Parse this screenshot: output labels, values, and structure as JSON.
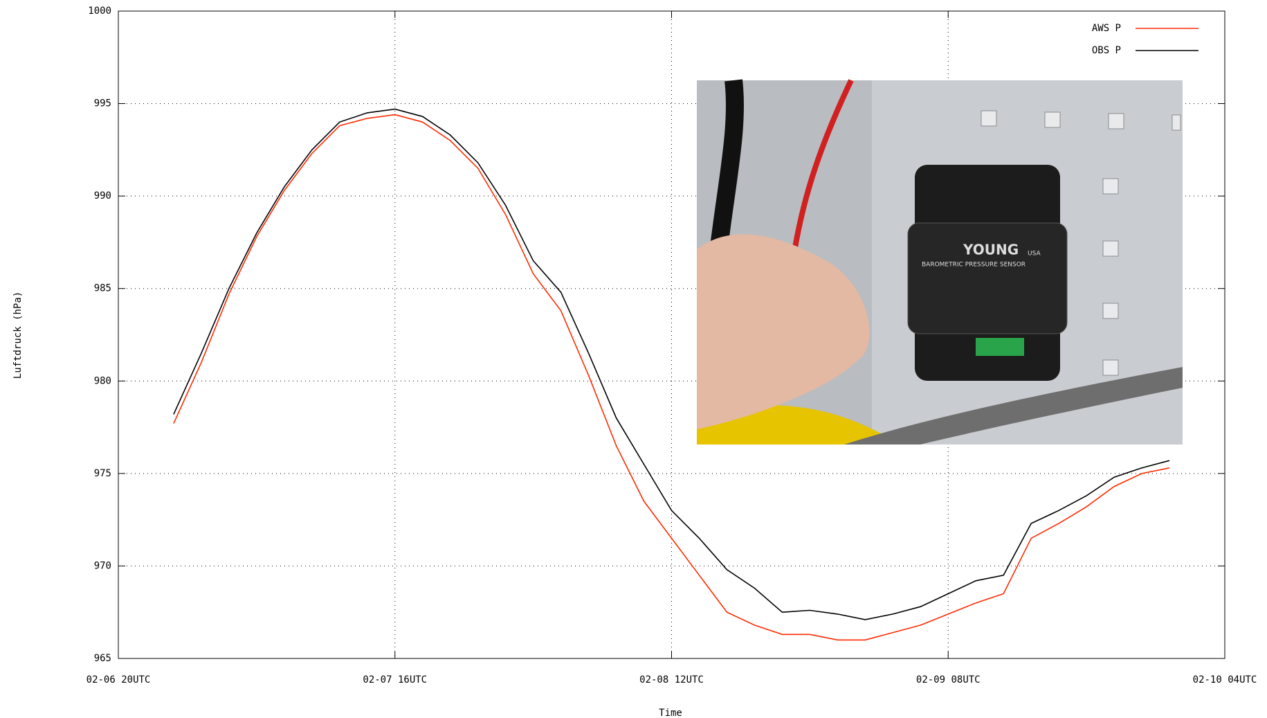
{
  "chart_data": {
    "type": "line",
    "xlabel": "Time",
    "ylabel": "Luftdruck (hPa)",
    "x": [
      "02-07 00UTC",
      "02-07 02UTC",
      "02-07 04UTC",
      "02-07 06UTC",
      "02-07 08UTC",
      "02-07 10UTC",
      "02-07 12UTC",
      "02-07 14UTC",
      "02-07 16UTC",
      "02-07 18UTC",
      "02-07 20UTC",
      "02-07 22UTC",
      "02-08 00UTC",
      "02-08 02UTC",
      "02-08 04UTC",
      "02-08 06UTC",
      "02-08 08UTC",
      "02-08 10UTC",
      "02-08 12UTC",
      "02-08 14UTC",
      "02-08 16UTC",
      "02-08 18UTC",
      "02-08 20UTC",
      "02-08 22UTC",
      "02-09 00UTC",
      "02-09 02UTC",
      "02-09 04UTC",
      "02-09 06UTC",
      "02-09 08UTC",
      "02-09 10UTC",
      "02-09 12UTC",
      "02-09 14UTC",
      "02-09 16UTC",
      "02-09 18UTC",
      "02-09 20UTC",
      "02-09 22UTC",
      "02-10 00UTC"
    ],
    "series": [
      {
        "name": "AWS P",
        "color": "#ff2a00",
        "values": [
          977.7,
          981,
          984.7,
          987.8,
          990.3,
          992.3,
          993.8,
          994.2,
          994.4,
          994.0,
          993.0,
          991.5,
          989.0,
          985.8,
          983.8,
          980.3,
          976.5,
          973.5,
          971.5,
          969.5,
          967.5,
          966.8,
          966.3,
          966.3,
          966.0,
          966.0,
          966.4,
          966.8,
          967.4,
          968.0,
          968.5,
          971.5,
          972.3,
          973.2,
          974.3,
          975.0,
          975.3
        ]
      },
      {
        "name": "OBS P",
        "color": "#000000",
        "values": [
          978.2,
          981.5,
          985,
          988,
          990.5,
          992.5,
          994.0,
          994.5,
          994.7,
          994.3,
          993.3,
          991.8,
          989.5,
          986.5,
          984.8,
          981.5,
          978,
          975.5,
          973,
          971.5,
          969.8,
          968.8,
          967.5,
          967.6,
          967.4,
          967.1,
          967.4,
          967.8,
          968.5,
          969.2,
          969.5,
          972.3,
          973,
          973.8,
          974.8,
          975.3,
          975.7
        ]
      }
    ],
    "xlim": [
      "02-06 20UTC",
      "02-10 04UTC"
    ],
    "xticks": [
      "02-06 20UTC",
      "02-07 16UTC",
      "02-08 12UTC",
      "02-09 08UTC",
      "02-10 04UTC"
    ],
    "ylim": [
      965,
      1000
    ],
    "yticks": [
      965,
      970,
      975,
      980,
      985,
      990,
      995,
      1000
    ],
    "grid": true,
    "legend": "top-right",
    "image_labels": [
      "YOUNG",
      "USA",
      "BAROMETRIC PRESSURE SENSOR"
    ]
  }
}
